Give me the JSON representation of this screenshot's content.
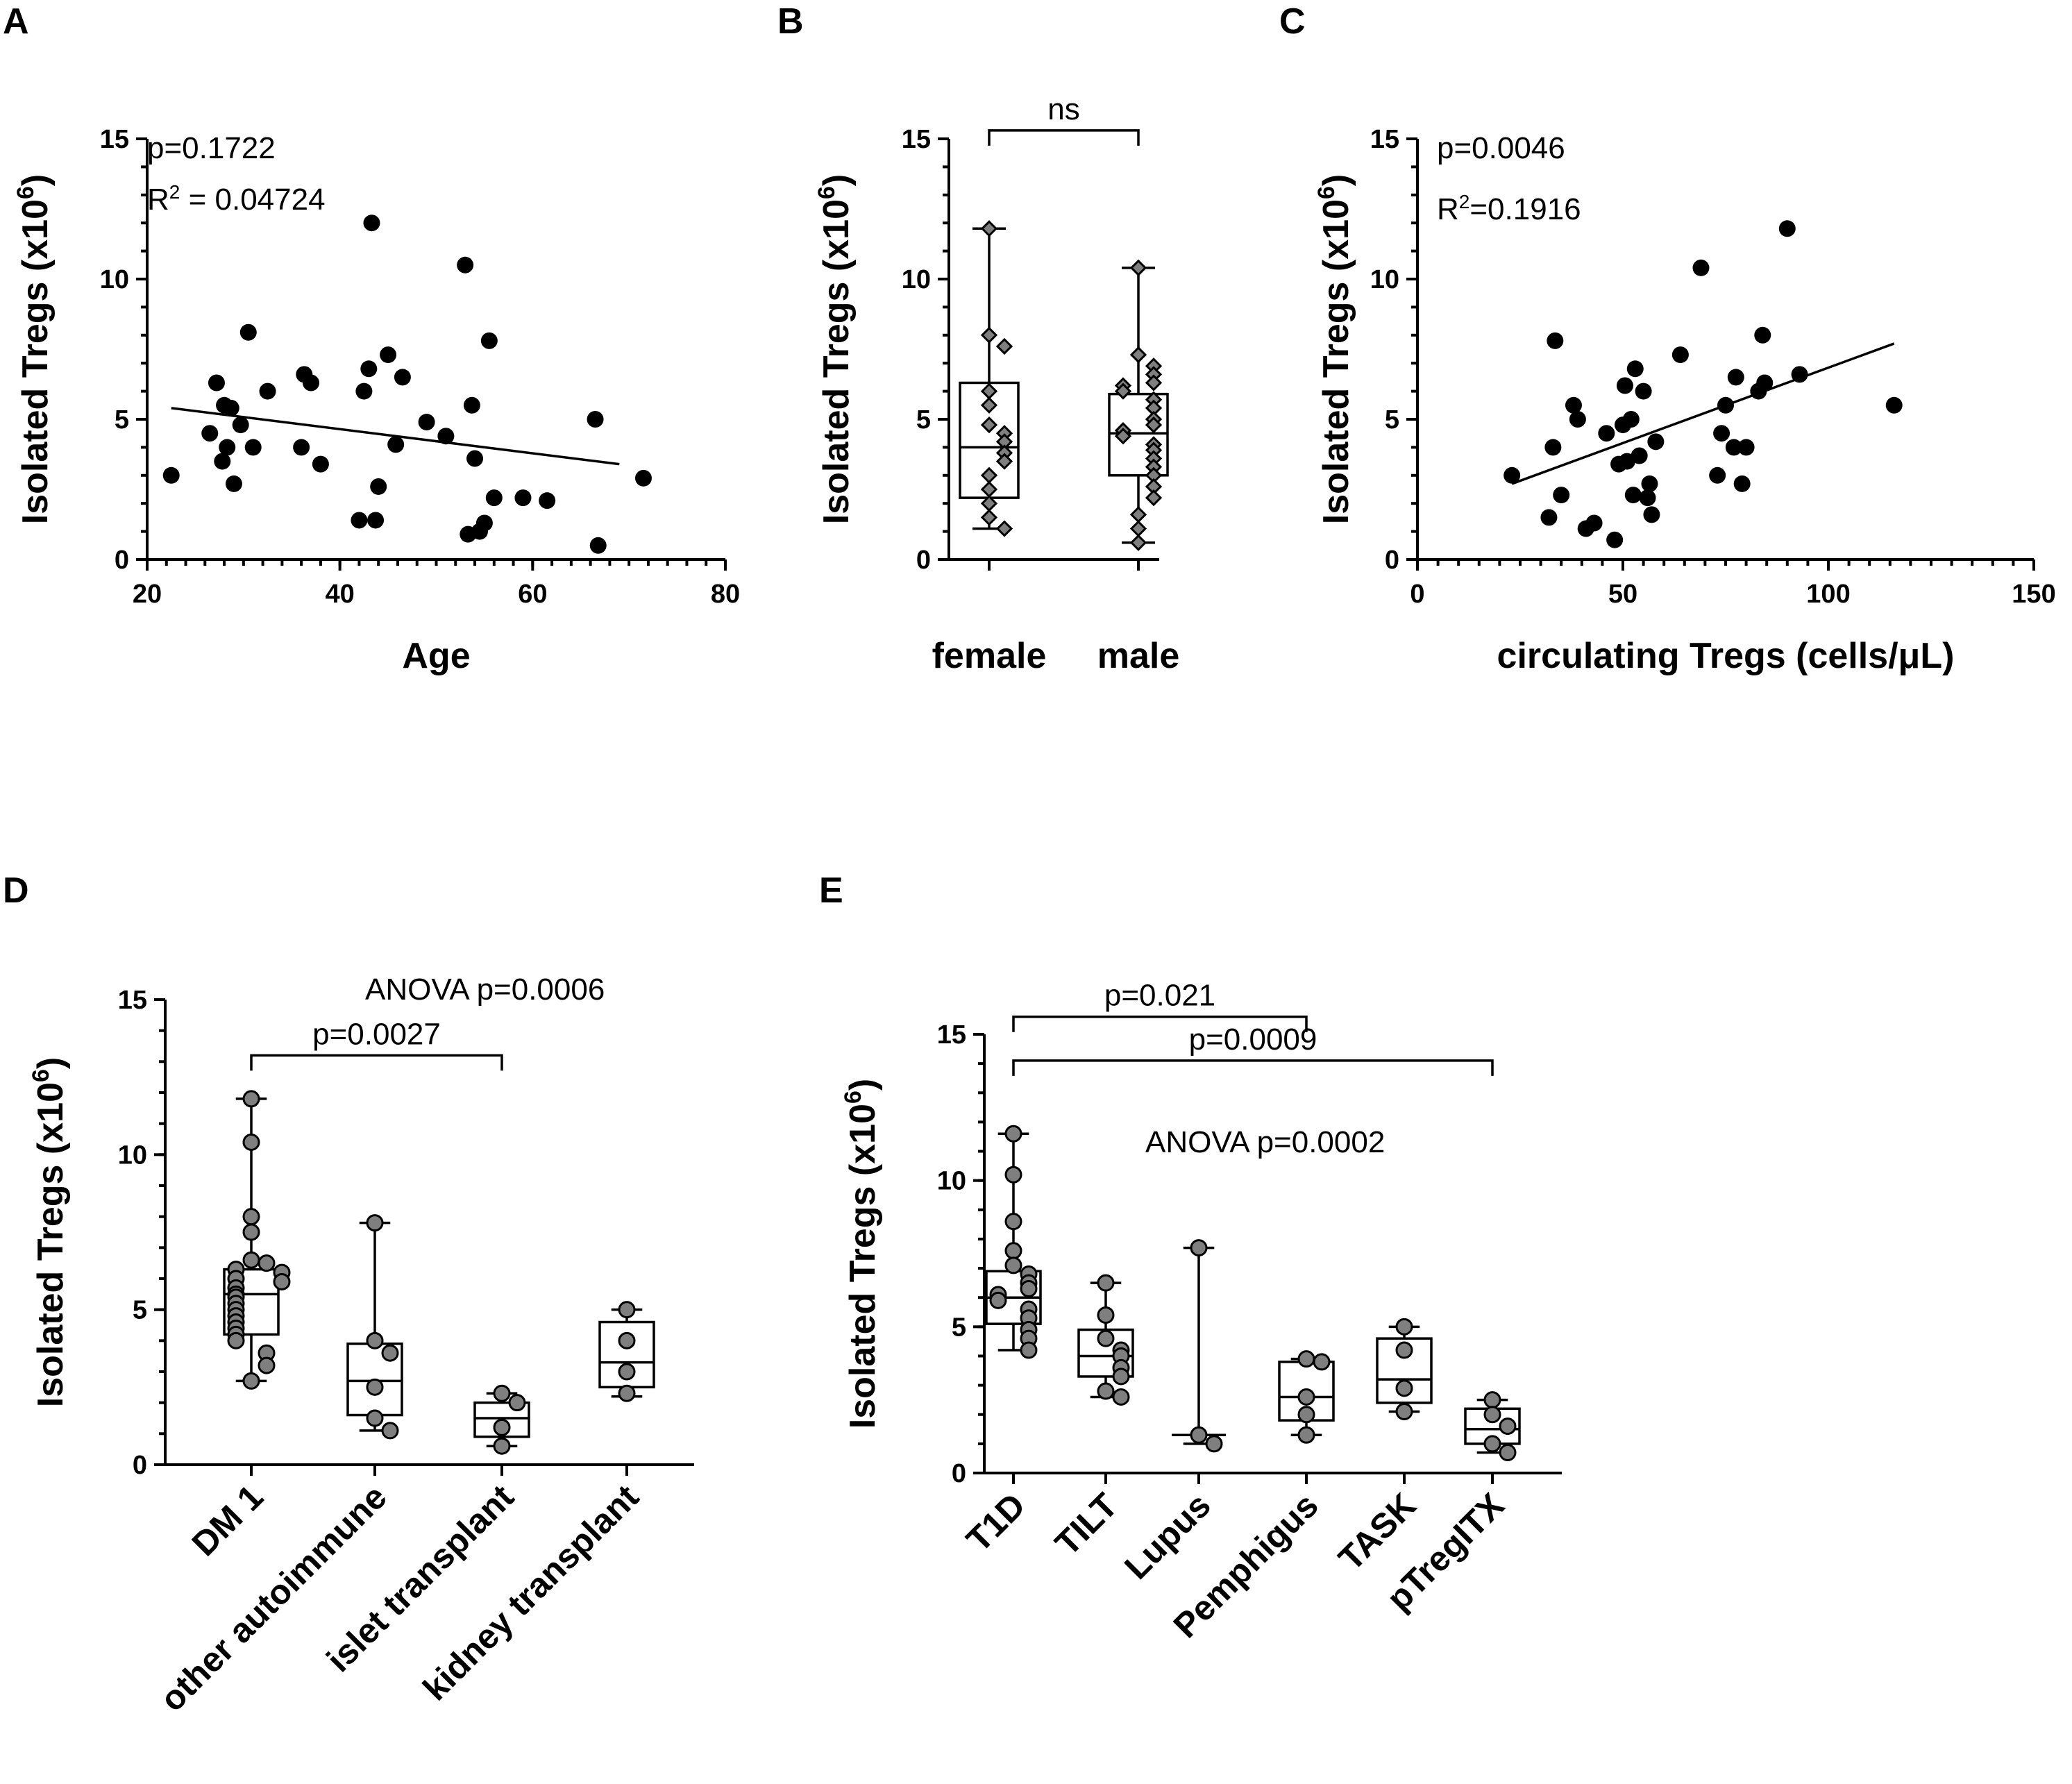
{
  "chart_data": [
    {
      "id": "A",
      "panel_label": "A",
      "type": "scatter",
      "xlabel": "Age",
      "ylabel_main": "Isolated Tregs (x10",
      "ylabel_sup": "6",
      "ylabel_close": ")",
      "xlim": [
        20,
        80
      ],
      "ylim": [
        0,
        15
      ],
      "xticks": [
        "20",
        "40",
        "60",
        "80"
      ],
      "yticks": [
        "0",
        "5",
        "10",
        "15"
      ],
      "annotations": {
        "p": "p=0.1722",
        "r2_base": "R",
        "r2_sup": "2",
        "r2_rest": " =  0.04724"
      },
      "fit_line": {
        "x": [
          22.5,
          69
        ],
        "y": [
          5.4,
          3.4
        ]
      },
      "points": [
        [
          22.5,
          3.0
        ],
        [
          26.5,
          4.5
        ],
        [
          27.2,
          6.3
        ],
        [
          27.8,
          3.5
        ],
        [
          28,
          5.5
        ],
        [
          28.3,
          4.0
        ],
        [
          28.7,
          5.4
        ],
        [
          29,
          2.7
        ],
        [
          29.7,
          4.8
        ],
        [
          30.5,
          8.1
        ],
        [
          31,
          4.0
        ],
        [
          32.5,
          6.0
        ],
        [
          36,
          4.0
        ],
        [
          36.3,
          6.6
        ],
        [
          37,
          6.3
        ],
        [
          38,
          3.4
        ],
        [
          42,
          1.4
        ],
        [
          42.5,
          6.0
        ],
        [
          43,
          6.8
        ],
        [
          43.3,
          12.0
        ],
        [
          43.7,
          1.4
        ],
        [
          44,
          2.6
        ],
        [
          45,
          7.3
        ],
        [
          45.8,
          4.1
        ],
        [
          46.5,
          6.5
        ],
        [
          49,
          4.9
        ],
        [
          51,
          4.4
        ],
        [
          53,
          10.5
        ],
        [
          53.3,
          0.9
        ],
        [
          53.7,
          5.5
        ],
        [
          54,
          3.6
        ],
        [
          54.5,
          1.0
        ],
        [
          55,
          1.3
        ],
        [
          55.5,
          7.8
        ],
        [
          56,
          2.2
        ],
        [
          59,
          2.2
        ],
        [
          61.5,
          2.1
        ],
        [
          66.5,
          5.0
        ],
        [
          66.8,
          0.5
        ],
        [
          71.5,
          2.9
        ]
      ]
    },
    {
      "id": "B",
      "panel_label": "B",
      "type": "box",
      "ylabel_main": "Isolated Tregs (x10",
      "ylabel_sup": "6",
      "ylabel_close": ")",
      "ylim": [
        0,
        15
      ],
      "yticks": [
        "0",
        "5",
        "10",
        "15"
      ],
      "categories": [
        "female",
        "male"
      ],
      "marker": "diamond",
      "comparisons": [
        {
          "from": 0,
          "to": 1,
          "label": "ns",
          "y": 15.3
        }
      ],
      "groups": [
        {
          "name": "female",
          "min": 1.1,
          "q1": 2.2,
          "median": 4.0,
          "q3": 6.3,
          "max": 11.8,
          "points": [
            11.8,
            8.0,
            7.6,
            6.0,
            5.5,
            4.8,
            4.5,
            4.2,
            3.8,
            3.5,
            3.0,
            2.5,
            2.0,
            1.5,
            1.1
          ]
        },
        {
          "name": "male",
          "min": 0.6,
          "q1": 3.0,
          "median": 4.5,
          "q3": 5.9,
          "max": 10.4,
          "points": [
            10.4,
            7.3,
            6.9,
            6.6,
            6.3,
            6.2,
            6.0,
            5.7,
            5.4,
            5.0,
            4.8,
            4.6,
            4.4,
            4.1,
            3.9,
            3.6,
            3.3,
            3.0,
            2.6,
            2.2,
            1.6,
            1.1,
            0.6
          ]
        }
      ]
    },
    {
      "id": "C",
      "panel_label": "C",
      "type": "scatter",
      "xlabel": "circulating Tregs (cells/μL)",
      "ylabel_main": "Isolated Tregs (x10",
      "ylabel_sup": "6",
      "ylabel_close": ")",
      "xlim": [
        0,
        150
      ],
      "ylim": [
        0,
        15
      ],
      "xticks": [
        "0",
        "50",
        "100",
        "150"
      ],
      "yticks": [
        "0",
        "5",
        "10",
        "15"
      ],
      "annotations": {
        "p": "p=0.0046",
        "r2_base": "R",
        "r2_sup": "2",
        "r2_rest": "=0.1916"
      },
      "fit_line": {
        "x": [
          23,
          116
        ],
        "y": [
          2.7,
          7.7
        ]
      },
      "points": [
        [
          23,
          3.0
        ],
        [
          32,
          1.5
        ],
        [
          33,
          4.0
        ],
        [
          33.5,
          7.8
        ],
        [
          35,
          2.3
        ],
        [
          38,
          5.5
        ],
        [
          39,
          5.0
        ],
        [
          41,
          1.1
        ],
        [
          43,
          1.3
        ],
        [
          46,
          4.5
        ],
        [
          48,
          0.7
        ],
        [
          49,
          3.4
        ],
        [
          50,
          4.8
        ],
        [
          50.5,
          6.2
        ],
        [
          51,
          3.5
        ],
        [
          52,
          5.0
        ],
        [
          52.5,
          2.3
        ],
        [
          53,
          6.8
        ],
        [
          54,
          3.7
        ],
        [
          55,
          6.0
        ],
        [
          56,
          2.2
        ],
        [
          56.5,
          2.7
        ],
        [
          57,
          1.6
        ],
        [
          58,
          4.2
        ],
        [
          64,
          7.3
        ],
        [
          69,
          10.4
        ],
        [
          73,
          3.0
        ],
        [
          74,
          4.5
        ],
        [
          75,
          5.5
        ],
        [
          77,
          4.0
        ],
        [
          77.5,
          6.5
        ],
        [
          79,
          2.7
        ],
        [
          80,
          4.0
        ],
        [
          83,
          6.0
        ],
        [
          84,
          8.0
        ],
        [
          84.5,
          6.3
        ],
        [
          90,
          11.8
        ],
        [
          93,
          6.6
        ],
        [
          116,
          5.5
        ]
      ]
    },
    {
      "id": "D",
      "panel_label": "D",
      "type": "box",
      "ylabel_main": "Isolated Tregs (x10",
      "ylabel_sup": "6",
      "ylabel_close": ")",
      "ylim": [
        0,
        15
      ],
      "yticks": [
        "0",
        "5",
        "10",
        "15"
      ],
      "categories": [
        "DM 1",
        "other autoimmune",
        "islet transplant",
        "kidney transplant"
      ],
      "marker": "circle",
      "anova": "ANOVA p=0.0006",
      "comparisons": [
        {
          "from": 0,
          "to": 2,
          "label": "p=0.0027",
          "y": 13.2
        }
      ],
      "groups": [
        {
          "name": "DM 1",
          "min": 2.7,
          "q1": 4.2,
          "median": 5.5,
          "q3": 6.3,
          "max": 11.8,
          "points": [
            11.8,
            10.4,
            8.0,
            7.5,
            6.6,
            6.5,
            6.3,
            6.2,
            6.0,
            5.9,
            5.7,
            5.5,
            5.4,
            5.2,
            5.0,
            4.8,
            4.6,
            4.4,
            4.2,
            4.0,
            3.6,
            3.2,
            2.7
          ]
        },
        {
          "name": "other autoimmune",
          "min": 1.1,
          "q1": 1.6,
          "median": 2.7,
          "q3": 3.9,
          "max": 7.8,
          "points": [
            7.8,
            4.0,
            3.6,
            2.5,
            1.5,
            1.1
          ]
        },
        {
          "name": "islet transplant",
          "min": 0.6,
          "q1": 0.9,
          "median": 1.5,
          "q3": 2.0,
          "max": 2.3,
          "points": [
            2.3,
            2.0,
            1.2,
            0.6
          ]
        },
        {
          "name": "kidney transplant",
          "min": 2.2,
          "q1": 2.5,
          "median": 3.3,
          "q3": 4.6,
          "max": 5.0,
          "points": [
            5.0,
            4.0,
            3.0,
            2.3
          ]
        }
      ]
    },
    {
      "id": "E",
      "panel_label": "E",
      "type": "box",
      "ylabel_main": "Isolated Tregs (x10",
      "ylabel_sup": "6",
      "ylabel_close": ")",
      "ylim": [
        0,
        15
      ],
      "yticks": [
        "0",
        "5",
        "10",
        "15"
      ],
      "categories": [
        "T1D",
        "TILT",
        "Lupus",
        "Pemphigus",
        "TASK",
        "pTregITX"
      ],
      "marker": "circle",
      "anova": "ANOVA p=0.0002",
      "comparisons": [
        {
          "from": 0,
          "to": 3,
          "label": "p=0.021",
          "y": 15.6
        },
        {
          "from": 0,
          "to": 5,
          "label": "p=0.0009",
          "y": 14.1
        }
      ],
      "groups": [
        {
          "name": "T1D",
          "min": 4.2,
          "q1": 5.1,
          "median": 6.0,
          "q3": 6.9,
          "max": 11.6,
          "points": [
            11.6,
            10.2,
            8.6,
            7.6,
            7.1,
            6.8,
            6.5,
            6.3,
            6.1,
            5.9,
            5.6,
            5.3,
            4.9,
            4.6,
            4.2
          ]
        },
        {
          "name": "TILT",
          "min": 2.6,
          "q1": 3.3,
          "median": 4.0,
          "q3": 4.9,
          "max": 6.5,
          "points": [
            6.5,
            5.4,
            4.6,
            4.2,
            4.0,
            3.6,
            3.3,
            2.8,
            2.6
          ]
        },
        {
          "name": "Lupus",
          "min": 1.0,
          "q1": 1.3,
          "median": 1.3,
          "q3": 1.3,
          "max": 7.7,
          "points": [
            7.7,
            1.3,
            1.0
          ]
        },
        {
          "name": "Pemphigus",
          "min": 1.3,
          "q1": 1.8,
          "median": 2.6,
          "q3": 3.8,
          "max": 3.9,
          "points": [
            3.9,
            3.8,
            2.6,
            2.0,
            1.3
          ]
        },
        {
          "name": "TASK",
          "min": 2.1,
          "q1": 2.4,
          "median": 3.2,
          "q3": 4.6,
          "max": 5.0,
          "points": [
            5.0,
            4.2,
            2.9,
            2.1
          ]
        },
        {
          "name": "pTregITX",
          "min": 0.7,
          "q1": 1.0,
          "median": 1.5,
          "q3": 2.2,
          "max": 2.5,
          "points": [
            2.5,
            2.0,
            1.6,
            1.0,
            0.7
          ]
        }
      ]
    }
  ]
}
